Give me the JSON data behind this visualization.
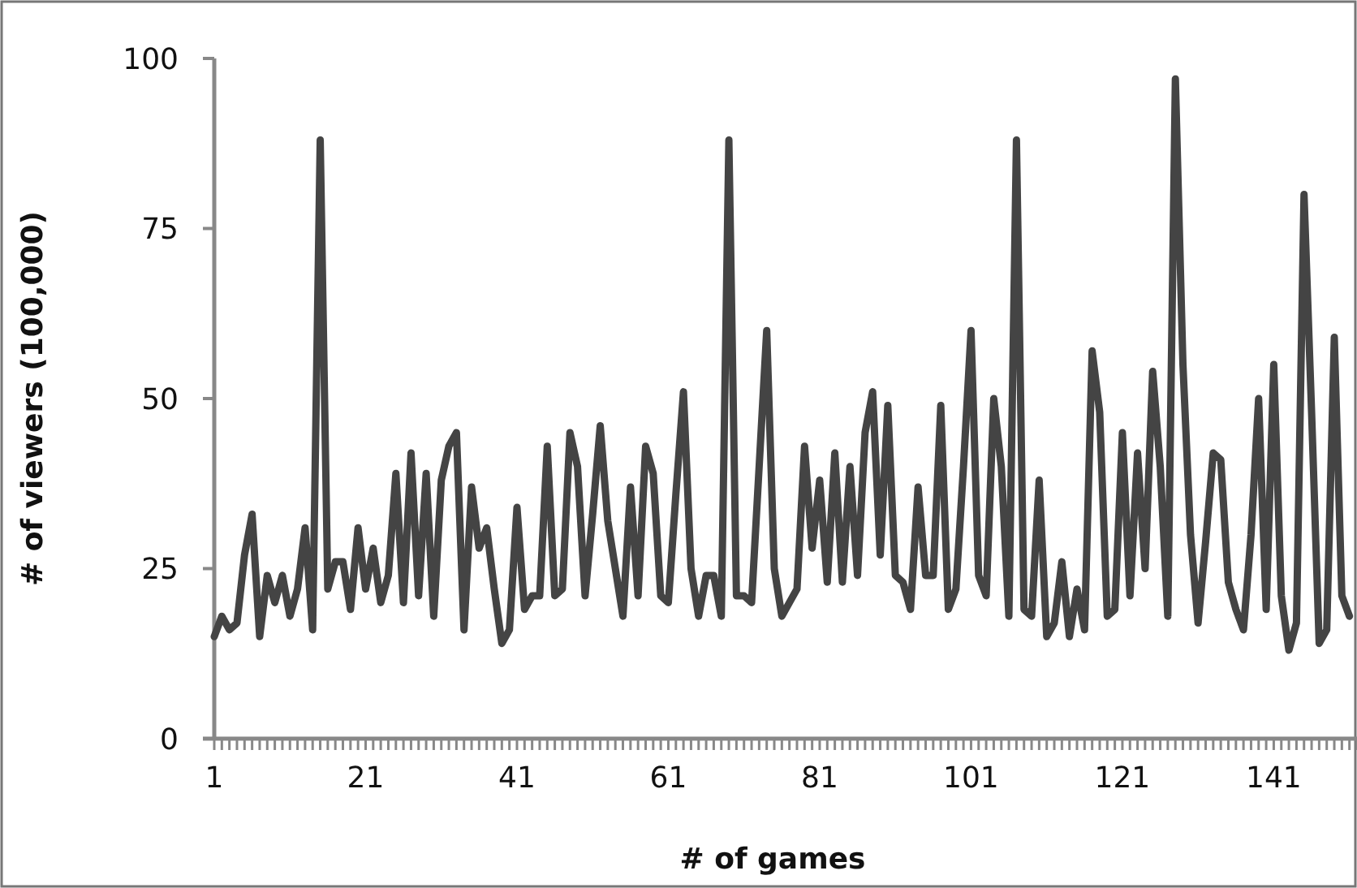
{
  "chart_data": {
    "type": "line",
    "xlabel": "# of games",
    "ylabel": "# of viewers (100,000)",
    "xlim": [
      1,
      152
    ],
    "ylim": [
      0,
      100
    ],
    "yticks": [
      0,
      25,
      50,
      75,
      100
    ],
    "xticks": [
      1,
      {
        "value": 2,
        "label": null
      },
      {
        "value": 3,
        "label": null
      },
      {
        "value": 4,
        "label": null
      },
      {
        "value": 5,
        "label": null
      },
      {
        "value": 6,
        "label": null
      },
      {
        "value": 7,
        "label": null
      },
      {
        "value": 8,
        "label": null
      },
      {
        "value": 9,
        "label": null
      },
      {
        "value": 10,
        "label": null
      },
      {
        "value": 11,
        "label": null
      },
      {
        "value": 12,
        "label": null
      },
      {
        "value": 13,
        "label": null
      },
      {
        "value": 14,
        "label": null
      },
      {
        "value": 15,
        "label": null
      },
      {
        "value": 16,
        "label": null
      },
      {
        "value": 17,
        "label": null
      },
      {
        "value": 18,
        "label": null
      },
      {
        "value": 19,
        "label": null
      },
      {
        "value": 20,
        "label": null
      },
      21,
      {
        "value": 22,
        "label": null
      },
      {
        "value": 23,
        "label": null
      },
      {
        "value": 24,
        "label": null
      },
      {
        "value": 25,
        "label": null
      },
      {
        "value": 26,
        "label": null
      },
      {
        "value": 27,
        "label": null
      },
      {
        "value": 28,
        "label": null
      },
      {
        "value": 29,
        "label": null
      },
      {
        "value": 30,
        "label": null
      },
      {
        "value": 31,
        "label": null
      },
      {
        "value": 32,
        "label": null
      },
      {
        "value": 33,
        "label": null
      },
      {
        "value": 34,
        "label": null
      },
      {
        "value": 35,
        "label": null
      },
      {
        "value": 36,
        "label": null
      },
      {
        "value": 37,
        "label": null
      },
      {
        "value": 38,
        "label": null
      },
      {
        "value": 39,
        "label": null
      },
      {
        "value": 40,
        "label": null
      },
      41,
      {
        "value": 42,
        "label": null
      },
      {
        "value": 43,
        "label": null
      },
      {
        "value": 44,
        "label": null
      },
      {
        "value": 45,
        "label": null
      },
      {
        "value": 46,
        "label": null
      },
      {
        "value": 47,
        "label": null
      },
      {
        "value": 48,
        "label": null
      },
      {
        "value": 49,
        "label": null
      },
      {
        "value": 50,
        "label": null
      },
      {
        "value": 51,
        "label": null
      },
      {
        "value": 52,
        "label": null
      },
      {
        "value": 53,
        "label": null
      },
      {
        "value": 54,
        "label": null
      },
      {
        "value": 55,
        "label": null
      },
      {
        "value": 56,
        "label": null
      },
      {
        "value": 57,
        "label": null
      },
      {
        "value": 58,
        "label": null
      },
      {
        "value": 59,
        "label": null
      },
      {
        "value": 60,
        "label": null
      },
      61,
      {
        "value": 62,
        "label": null
      },
      {
        "value": 63,
        "label": null
      },
      {
        "value": 64,
        "label": null
      },
      {
        "value": 65,
        "label": null
      },
      {
        "value": 66,
        "label": null
      },
      {
        "value": 67,
        "label": null
      },
      {
        "value": 68,
        "label": null
      },
      {
        "value": 69,
        "label": null
      },
      {
        "value": 70,
        "label": null
      },
      {
        "value": 71,
        "label": null
      },
      {
        "value": 72,
        "label": null
      },
      {
        "value": 73,
        "label": null
      },
      {
        "value": 74,
        "label": null
      },
      {
        "value": 75,
        "label": null
      },
      {
        "value": 76,
        "label": null
      },
      {
        "value": 77,
        "label": null
      },
      {
        "value": 78,
        "label": null
      },
      {
        "value": 79,
        "label": null
      },
      {
        "value": 80,
        "label": null
      },
      81,
      {
        "value": 82,
        "label": null
      },
      {
        "value": 83,
        "label": null
      },
      {
        "value": 84,
        "label": null
      },
      {
        "value": 85,
        "label": null
      },
      {
        "value": 86,
        "label": null
      },
      {
        "value": 87,
        "label": null
      },
      {
        "value": 88,
        "label": null
      },
      {
        "value": 89,
        "label": null
      },
      {
        "value": 90,
        "label": null
      },
      {
        "value": 91,
        "label": null
      },
      {
        "value": 92,
        "label": null
      },
      {
        "value": 93,
        "label": null
      },
      {
        "value": 94,
        "label": null
      },
      {
        "value": 95,
        "label": null
      },
      {
        "value": 96,
        "label": null
      },
      {
        "value": 97,
        "label": null
      },
      {
        "value": 98,
        "label": null
      },
      {
        "value": 99,
        "label": null
      },
      {
        "value": 100,
        "label": null
      },
      101,
      {
        "value": 102,
        "label": null
      },
      {
        "value": 103,
        "label": null
      },
      {
        "value": 104,
        "label": null
      },
      {
        "value": 105,
        "label": null
      },
      {
        "value": 106,
        "label": null
      },
      {
        "value": 107,
        "label": null
      },
      {
        "value": 108,
        "label": null
      },
      {
        "value": 109,
        "label": null
      },
      {
        "value": 110,
        "label": null
      },
      {
        "value": 111,
        "label": null
      },
      {
        "value": 112,
        "label": null
      },
      {
        "value": 113,
        "label": null
      },
      {
        "value": 114,
        "label": null
      },
      {
        "value": 115,
        "label": null
      },
      {
        "value": 116,
        "label": null
      },
      {
        "value": 117,
        "label": null
      },
      {
        "value": 118,
        "label": null
      },
      {
        "value": 119,
        "label": null
      },
      {
        "value": 120,
        "label": null
      },
      121,
      {
        "value": 122,
        "label": null
      },
      {
        "value": 123,
        "label": null
      },
      {
        "value": 124,
        "label": null
      },
      {
        "value": 125,
        "label": null
      },
      {
        "value": 126,
        "label": null
      },
      {
        "value": 127,
        "label": null
      },
      {
        "value": 128,
        "label": null
      },
      {
        "value": 129,
        "label": null
      },
      {
        "value": 130,
        "label": null
      },
      {
        "value": 131,
        "label": null
      },
      {
        "value": 132,
        "label": null
      },
      {
        "value": 133,
        "label": null
      },
      {
        "value": 134,
        "label": null
      },
      {
        "value": 135,
        "label": null
      },
      {
        "value": 136,
        "label": null
      },
      {
        "value": 137,
        "label": null
      },
      {
        "value": 138,
        "label": null
      },
      {
        "value": 139,
        "label": null
      },
      {
        "value": 140,
        "label": null
      },
      141,
      {
        "value": 142,
        "label": null
      },
      {
        "value": 143,
        "label": null
      },
      {
        "value": 144,
        "label": null
      },
      {
        "value": 145,
        "label": null
      },
      {
        "value": 146,
        "label": null
      },
      {
        "value": 147,
        "label": null
      },
      {
        "value": 148,
        "label": null
      },
      {
        "value": 149,
        "label": null
      },
      {
        "value": 150,
        "label": null
      },
      {
        "value": 151,
        "label": null
      },
      {
        "value": 152,
        "label": null
      }
    ],
    "grid": false,
    "marker": "none",
    "line_style": "solid",
    "series": [
      {
        "color": "#444444",
        "x": [
          1,
          2,
          3,
          4,
          5,
          6,
          7,
          8,
          9,
          10,
          11,
          12,
          13,
          14,
          15,
          16,
          17,
          18,
          19,
          20,
          21,
          22,
          23,
          24,
          25,
          26,
          27,
          28,
          29,
          30,
          31,
          32,
          33,
          34,
          35,
          36,
          37,
          38,
          39,
          40,
          41,
          42,
          43,
          44,
          45,
          46,
          47,
          48,
          49,
          50,
          51,
          52,
          53,
          54,
          55,
          56,
          57,
          58,
          59,
          60,
          61,
          62,
          63,
          64,
          65,
          66,
          67,
          68,
          69,
          70,
          71,
          72,
          73,
          74,
          75,
          76,
          77,
          78,
          79,
          80,
          81,
          82,
          83,
          84,
          85,
          86,
          87,
          88,
          89,
          90,
          91,
          92,
          93,
          94,
          95,
          96,
          97,
          98,
          99,
          100,
          101,
          102,
          103,
          104,
          105,
          106,
          107,
          108,
          109,
          110,
          111,
          112,
          113,
          114,
          115,
          116,
          117,
          118,
          119,
          120,
          121,
          122,
          123,
          124,
          125,
          126,
          127,
          128,
          129,
          130,
          131,
          132,
          133,
          134,
          135,
          136,
          137,
          138,
          139,
          140,
          141,
          142,
          143,
          144,
          145,
          146,
          147,
          148,
          149,
          150,
          151
        ],
        "values": [
          15,
          18,
          16,
          17,
          27,
          33,
          15,
          24,
          20,
          24,
          18,
          22,
          31,
          16,
          88,
          22,
          26,
          26,
          19,
          31,
          22,
          28,
          20,
          24,
          39,
          20,
          42,
          21,
          39,
          18,
          38,
          43,
          45,
          16,
          37,
          28,
          31,
          22,
          14,
          16,
          34,
          19,
          21,
          21,
          43,
          21,
          22,
          45,
          40,
          21,
          33,
          46,
          32,
          25,
          18,
          37,
          21,
          43,
          39,
          21,
          20,
          36,
          51,
          25,
          18,
          24,
          24,
          18,
          88,
          21,
          21,
          20,
          40,
          60,
          25,
          18,
          20,
          22,
          43,
          28,
          38,
          23,
          42,
          23,
          40,
          24,
          45,
          51,
          27,
          49,
          24,
          23,
          19,
          37,
          24,
          24,
          49,
          19,
          22,
          40,
          60,
          24,
          21,
          50,
          40,
          18,
          88,
          19,
          18,
          38,
          15,
          17,
          26,
          15,
          22,
          16,
          57,
          48,
          18,
          19,
          45,
          21,
          42,
          25,
          54,
          40,
          18,
          97,
          55,
          30,
          17,
          29,
          42,
          41,
          23,
          19,
          16,
          30,
          50,
          19,
          55,
          21,
          13,
          17,
          80,
          48,
          14,
          16,
          59,
          21,
          18
        ]
      }
    ]
  }
}
